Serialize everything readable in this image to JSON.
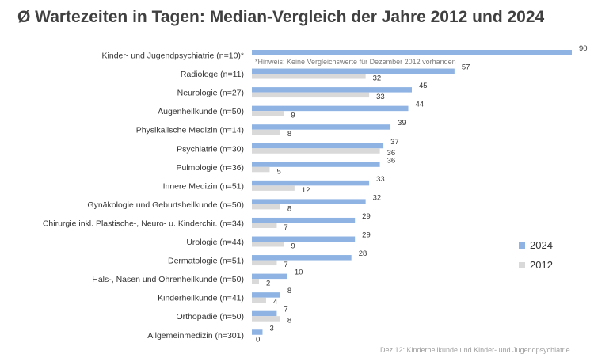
{
  "chart_data": {
    "type": "bar",
    "orientation": "horizontal",
    "title": "Ø Wartezeiten in Tagen: Median-Vergleich der Jahre 2012 und 2024",
    "categories": [
      "Kinder- und Jugendpsychiatrie (n=10)*",
      "Radiologe (n=11)",
      "Neurologie (n=27)",
      "Augenheilkunde (n=50)",
      "Physikalische Medizin (n=14)",
      "Psychiatrie (n=30)",
      "Pulmologie (n=36)",
      "Innere Medizin (n=51)",
      "Gynäkologie und Geburtsheilkunde (n=50)",
      "Chirurgie inkl. Plastische-, Neuro- u. Kinderchir. (n=34)",
      "Urologie (n=44)",
      "Dermatologie (n=51)",
      "Hals-, Nasen und Ohrenheilkunde (n=50)",
      "Kinderheilkunde (n=41)",
      "Orthopädie (n=50)",
      "Allgemeinmedizin (n=301)"
    ],
    "series": [
      {
        "name": "2024",
        "color": "#8fb4e3",
        "values": [
          90,
          57,
          45,
          44,
          39,
          37,
          36,
          33,
          32,
          29,
          29,
          28,
          10,
          8,
          7,
          3
        ]
      },
      {
        "name": "2012",
        "color": "#d9d9d9",
        "values": [
          null,
          32,
          33,
          9,
          8,
          36,
          5,
          12,
          8,
          7,
          9,
          7,
          2,
          4,
          8,
          0
        ]
      }
    ],
    "annotations": [
      "*Hinweis: Keine Vergleichswerte für Dezember 2012 vorhanden"
    ],
    "xlim": [
      0,
      90
    ],
    "grid": false,
    "legend": "right"
  },
  "footnote": "Dez 12: Kinderheilkunde und Kinder- und Jugendpsychiatrie"
}
